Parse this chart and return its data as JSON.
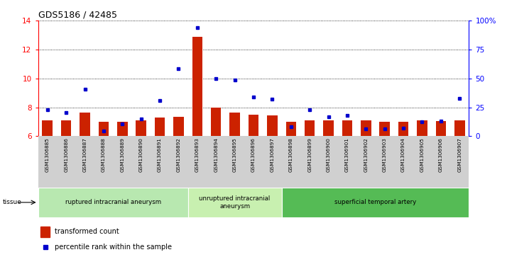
{
  "title": "GDS5186 / 42485",
  "samples": [
    "GSM1306885",
    "GSM1306886",
    "GSM1306887",
    "GSM1306888",
    "GSM1306889",
    "GSM1306890",
    "GSM1306891",
    "GSM1306892",
    "GSM1306893",
    "GSM1306894",
    "GSM1306895",
    "GSM1306896",
    "GSM1306897",
    "GSM1306898",
    "GSM1306899",
    "GSM1306900",
    "GSM1306901",
    "GSM1306902",
    "GSM1306903",
    "GSM1306904",
    "GSM1306905",
    "GSM1306906",
    "GSM1306907"
  ],
  "bar_values": [
    7.1,
    7.1,
    7.65,
    7.0,
    7.0,
    7.1,
    7.3,
    7.35,
    12.9,
    8.0,
    7.65,
    7.5,
    7.45,
    7.0,
    7.1,
    7.1,
    7.1,
    7.1,
    7.0,
    7.0,
    7.1,
    7.05,
    7.1
  ],
  "dot_values": [
    7.85,
    7.65,
    9.25,
    6.35,
    6.85,
    7.2,
    8.45,
    10.65,
    13.5,
    10.0,
    9.9,
    8.7,
    8.55,
    6.65,
    7.85,
    7.35,
    7.45,
    6.5,
    6.5,
    6.55,
    7.0,
    7.05,
    8.6
  ],
  "ylim_left": [
    6,
    14
  ],
  "yticks_left": [
    6,
    8,
    10,
    12,
    14
  ],
  "yticks_right_labels": [
    "0",
    "25",
    "50",
    "75",
    "100%"
  ],
  "yticks_right_vals": [
    6,
    8,
    10,
    12,
    14
  ],
  "bar_color": "#cc2200",
  "dot_color": "#0000cc",
  "bar_bottom": 6,
  "bg_color": "#d0d0d0",
  "plot_bg": "#ffffff",
  "legend_bar_label": "transformed count",
  "legend_dot_label": "percentile rank within the sample",
  "tissue_label": "tissue",
  "group_defs": [
    {
      "start": 0,
      "end": 8,
      "color": "#aaddaa",
      "label": "ruptured intracranial aneurysm"
    },
    {
      "start": 8,
      "end": 13,
      "color": "#bbeeaa",
      "label": "unruptured intracranial\naneurysm"
    },
    {
      "start": 13,
      "end": 23,
      "color": "#44bb44",
      "label": "superficial temporal artery"
    }
  ]
}
